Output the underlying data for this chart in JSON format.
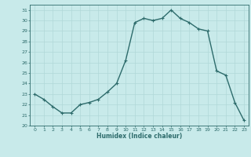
{
  "x": [
    0,
    1,
    2,
    3,
    4,
    5,
    6,
    7,
    8,
    9,
    10,
    11,
    12,
    13,
    14,
    15,
    16,
    17,
    18,
    19,
    20,
    21,
    22,
    23
  ],
  "y": [
    23.0,
    22.5,
    21.8,
    21.2,
    21.2,
    22.0,
    22.2,
    22.5,
    23.2,
    24.0,
    26.2,
    29.8,
    30.2,
    30.0,
    30.2,
    31.0,
    30.2,
    29.8,
    29.2,
    29.0,
    25.2,
    24.8,
    22.2,
    20.5
  ],
  "xlim": [
    -0.5,
    23.5
  ],
  "ylim": [
    20,
    31.5
  ],
  "yticks": [
    20,
    21,
    22,
    23,
    24,
    25,
    26,
    27,
    28,
    29,
    30,
    31
  ],
  "xticks": [
    0,
    1,
    2,
    3,
    4,
    5,
    6,
    7,
    8,
    9,
    10,
    11,
    12,
    13,
    14,
    15,
    16,
    17,
    18,
    19,
    20,
    21,
    22,
    23
  ],
  "xlabel": "Humidex (Indice chaleur)",
  "line_color": "#2d6b6b",
  "marker_color": "#2d6b6b",
  "bg_color": "#c8eaea",
  "grid_color": "#b0d8d8",
  "tick_color": "#2d6b6b",
  "label_color": "#2d6b6b",
  "line_width": 1.0,
  "marker_size": 2.5
}
